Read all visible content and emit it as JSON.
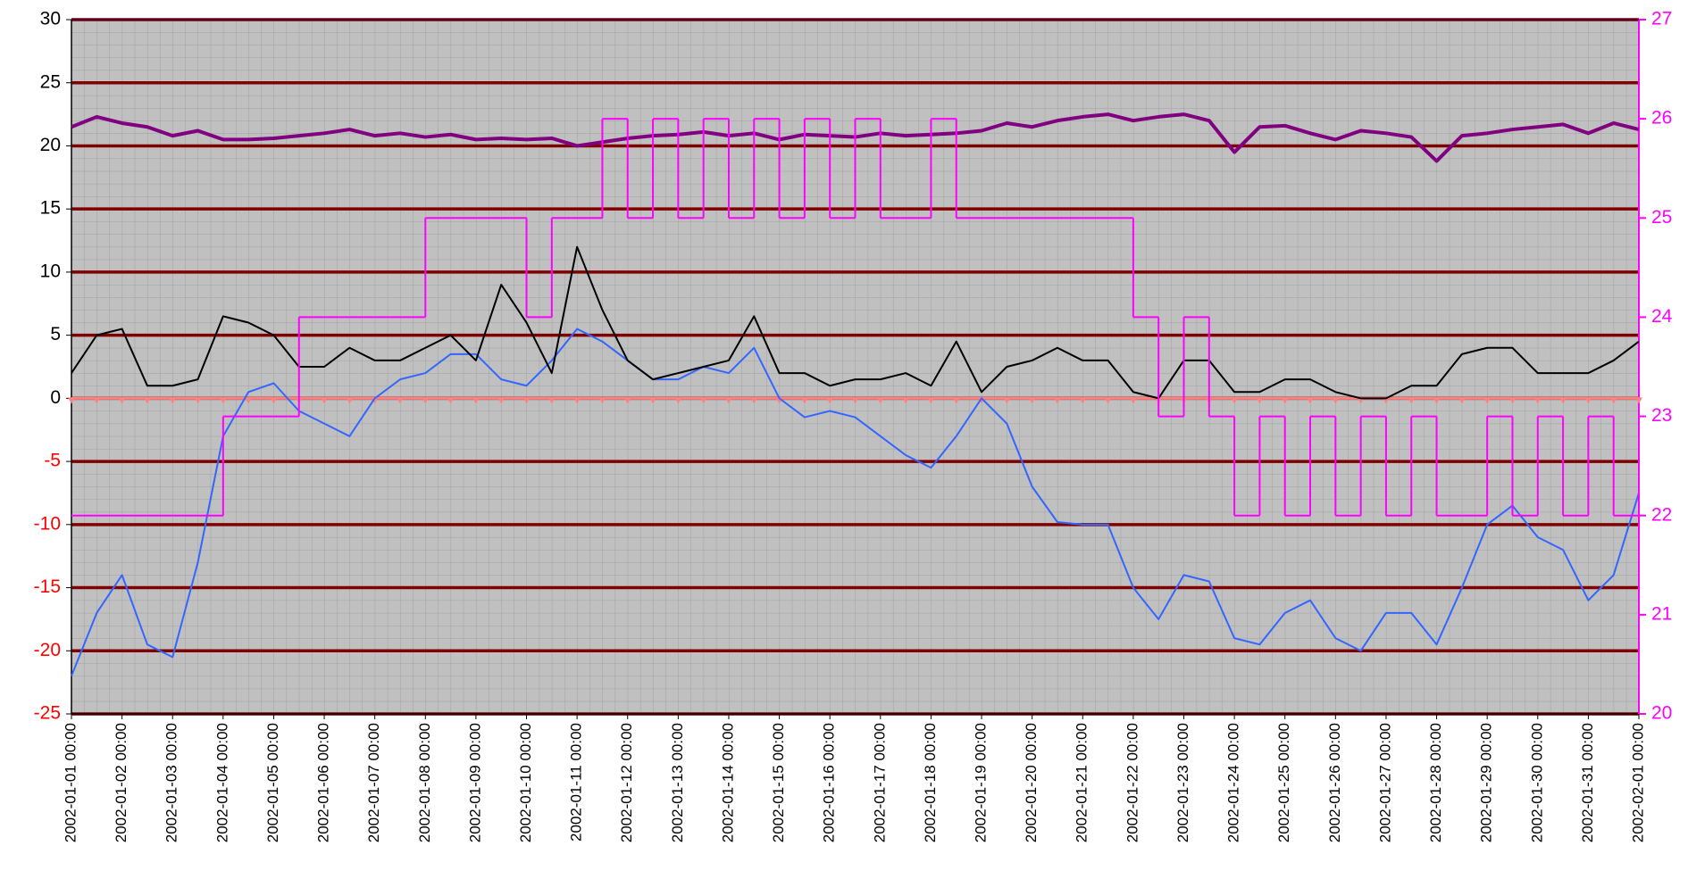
{
  "chart_data": {
    "type": "line",
    "x": [
      "2002-01-01 00:00",
      "2002-01-01 12:00",
      "2002-01-02 00:00",
      "2002-01-02 12:00",
      "2002-01-03 00:00",
      "2002-01-03 12:00",
      "2002-01-04 00:00",
      "2002-01-04 12:00",
      "2002-01-05 00:00",
      "2002-01-05 12:00",
      "2002-01-06 00:00",
      "2002-01-06 12:00",
      "2002-01-07 00:00",
      "2002-01-07 12:00",
      "2002-01-08 00:00",
      "2002-01-08 12:00",
      "2002-01-09 00:00",
      "2002-01-09 12:00",
      "2002-01-10 00:00",
      "2002-01-10 12:00",
      "2002-01-11 00:00",
      "2002-01-11 12:00",
      "2002-01-12 00:00",
      "2002-01-12 12:00",
      "2002-01-13 00:00",
      "2002-01-13 12:00",
      "2002-01-14 00:00",
      "2002-01-14 12:00",
      "2002-01-15 00:00",
      "2002-01-15 12:00",
      "2002-01-16 00:00",
      "2002-01-16 12:00",
      "2002-01-17 00:00",
      "2002-01-17 12:00",
      "2002-01-18 00:00",
      "2002-01-18 12:00",
      "2002-01-19 00:00",
      "2002-01-19 12:00",
      "2002-01-20 00:00",
      "2002-01-20 12:00",
      "2002-01-21 00:00",
      "2002-01-21 12:00",
      "2002-01-22 00:00",
      "2002-01-22 12:00",
      "2002-01-23 00:00",
      "2002-01-23 12:00",
      "2002-01-24 00:00",
      "2002-01-24 12:00",
      "2002-01-25 00:00",
      "2002-01-25 12:00",
      "2002-01-26 00:00",
      "2002-01-26 12:00",
      "2002-01-27 00:00",
      "2002-01-27 12:00",
      "2002-01-28 00:00",
      "2002-01-28 12:00",
      "2002-01-29 00:00",
      "2002-01-29 12:00",
      "2002-01-30 00:00",
      "2002-01-30 12:00",
      "2002-01-31 00:00",
      "2002-01-31 12:00",
      "2002-02-01 00:00"
    ],
    "xlim": [
      "2002-01-01 00:00",
      "2002-02-01 00:00"
    ],
    "xticks": [
      "2002-01-01 00:00",
      "2002-01-02 00:00",
      "2002-01-03 00:00",
      "2002-01-04 00:00",
      "2002-01-05 00:00",
      "2002-01-06 00:00",
      "2002-01-07 00:00",
      "2002-01-08 00:00",
      "2002-01-09 00:00",
      "2002-01-10 00:00",
      "2002-01-11 00:00",
      "2002-01-12 00:00",
      "2002-01-13 00:00",
      "2002-01-14 00:00",
      "2002-01-15 00:00",
      "2002-01-16 00:00",
      "2002-01-17 00:00",
      "2002-01-18 00:00",
      "2002-01-19 00:00",
      "2002-01-20 00:00",
      "2002-01-21 00:00",
      "2002-01-22 00:00",
      "2002-01-23 00:00",
      "2002-01-24 00:00",
      "2002-01-25 00:00",
      "2002-01-26 00:00",
      "2002-01-27 00:00",
      "2002-01-28 00:00",
      "2002-01-29 00:00",
      "2002-01-30 00:00",
      "2002-01-31 00:00",
      "2002-02-01 00:00"
    ],
    "ylim": [
      -25,
      30
    ],
    "yticks": [
      -25,
      -20,
      -15,
      -10,
      -5,
      0,
      5,
      10,
      15,
      20,
      25,
      30
    ],
    "y2lim": [
      20,
      27
    ],
    "y2ticks": [
      20,
      21,
      22,
      23,
      24,
      25,
      26,
      27
    ],
    "grid": true,
    "grid_color": "#800000",
    "background": "#c0c0c0",
    "negative_tick_color": "#ff0000",
    "y2_color": "#ff00ff",
    "series": [
      {
        "color": "#ff8080",
        "marker": "triangle",
        "values": [
          0,
          0,
          0,
          0,
          0,
          0,
          0,
          0,
          0,
          0,
          0,
          0,
          0,
          0,
          0,
          0,
          0,
          0,
          0,
          0,
          0,
          0,
          0,
          0,
          0,
          0,
          0,
          0,
          0,
          0,
          0,
          0,
          0,
          0,
          0,
          0,
          0,
          0,
          0,
          0,
          0,
          0,
          0,
          0,
          0,
          0,
          0,
          0,
          0,
          0,
          0,
          0,
          0,
          0,
          0,
          0,
          0,
          0,
          0,
          0,
          0,
          0,
          0
        ]
      },
      {
        "color": "#3366ff",
        "width": 2,
        "values": [
          -22,
          -17,
          -14,
          -19.5,
          -20.5,
          -13,
          -3,
          0.5,
          1.2,
          -1,
          -2,
          -3,
          0,
          1.5,
          2,
          3.5,
          3.5,
          1.5,
          1,
          3,
          5.5,
          4.5,
          3,
          1.5,
          1.5,
          2.5,
          2,
          4,
          0,
          -1.5,
          -1,
          -1.5,
          -3,
          -4.5,
          -5.5,
          -3,
          0,
          -2,
          -7,
          -9.8,
          -10,
          -10,
          -15,
          -17.5,
          -14,
          -14.5,
          -19,
          -19.5,
          -17,
          -16,
          -19,
          -20,
          -17,
          -17,
          -19.5,
          -15,
          -10,
          -8.5,
          -11,
          -12,
          -16,
          -14,
          -7.5
        ]
      },
      {
        "color": "#000000",
        "width": 2,
        "values": [
          2,
          5,
          5.5,
          1,
          1,
          1.5,
          6.5,
          6,
          5,
          2.5,
          2.5,
          4,
          3,
          3,
          4,
          5,
          3,
          9,
          6,
          2,
          12,
          7,
          3,
          1.5,
          2,
          2.5,
          3,
          6.5,
          2,
          2,
          1,
          1.5,
          1.5,
          2,
          1,
          4.5,
          0.5,
          2.5,
          3,
          4,
          3,
          3,
          0.5,
          0,
          3,
          3,
          0.5,
          0.5,
          1.5,
          1.5,
          0.5,
          0,
          0,
          1,
          1,
          3.5,
          4,
          4,
          2,
          2,
          2,
          3,
          4.5
        ]
      },
      {
        "color": "#800080",
        "width": 4,
        "values": [
          21.5,
          22.3,
          21.8,
          21.5,
          20.8,
          21.2,
          20.5,
          20.5,
          20.6,
          20.8,
          21,
          21.3,
          20.8,
          21,
          20.7,
          20.9,
          20.5,
          20.6,
          20.5,
          20.6,
          20,
          20.3,
          20.6,
          20.8,
          20.9,
          21.1,
          20.8,
          21,
          20.5,
          20.9,
          20.8,
          20.7,
          21,
          20.8,
          20.9,
          21,
          21.2,
          21.8,
          21.5,
          22,
          22.3,
          22.5,
          22,
          22.3,
          22.5,
          22,
          19.5,
          21.5,
          21.6,
          21,
          20.5,
          21.2,
          21,
          20.7,
          18.8,
          20.8,
          21,
          21.3,
          21.5,
          21.7,
          21,
          21.8,
          21.3
        ]
      },
      {
        "color": "#ff00ff",
        "width": 2,
        "axis": "y2",
        "step": true,
        "values": [
          22,
          22,
          22,
          22,
          22,
          22,
          23,
          23,
          23,
          24,
          24,
          24,
          24,
          24,
          25,
          25,
          25,
          25,
          24,
          25,
          25,
          26,
          25,
          26,
          25,
          26,
          25,
          26,
          25,
          26,
          25,
          26,
          25,
          25,
          26,
          25,
          25,
          25,
          25,
          25,
          25,
          25,
          24,
          23,
          24,
          23,
          22,
          23,
          22,
          23,
          22,
          23,
          22,
          23,
          22,
          22,
          23,
          22,
          23,
          22,
          23,
          22,
          23
        ]
      }
    ]
  }
}
